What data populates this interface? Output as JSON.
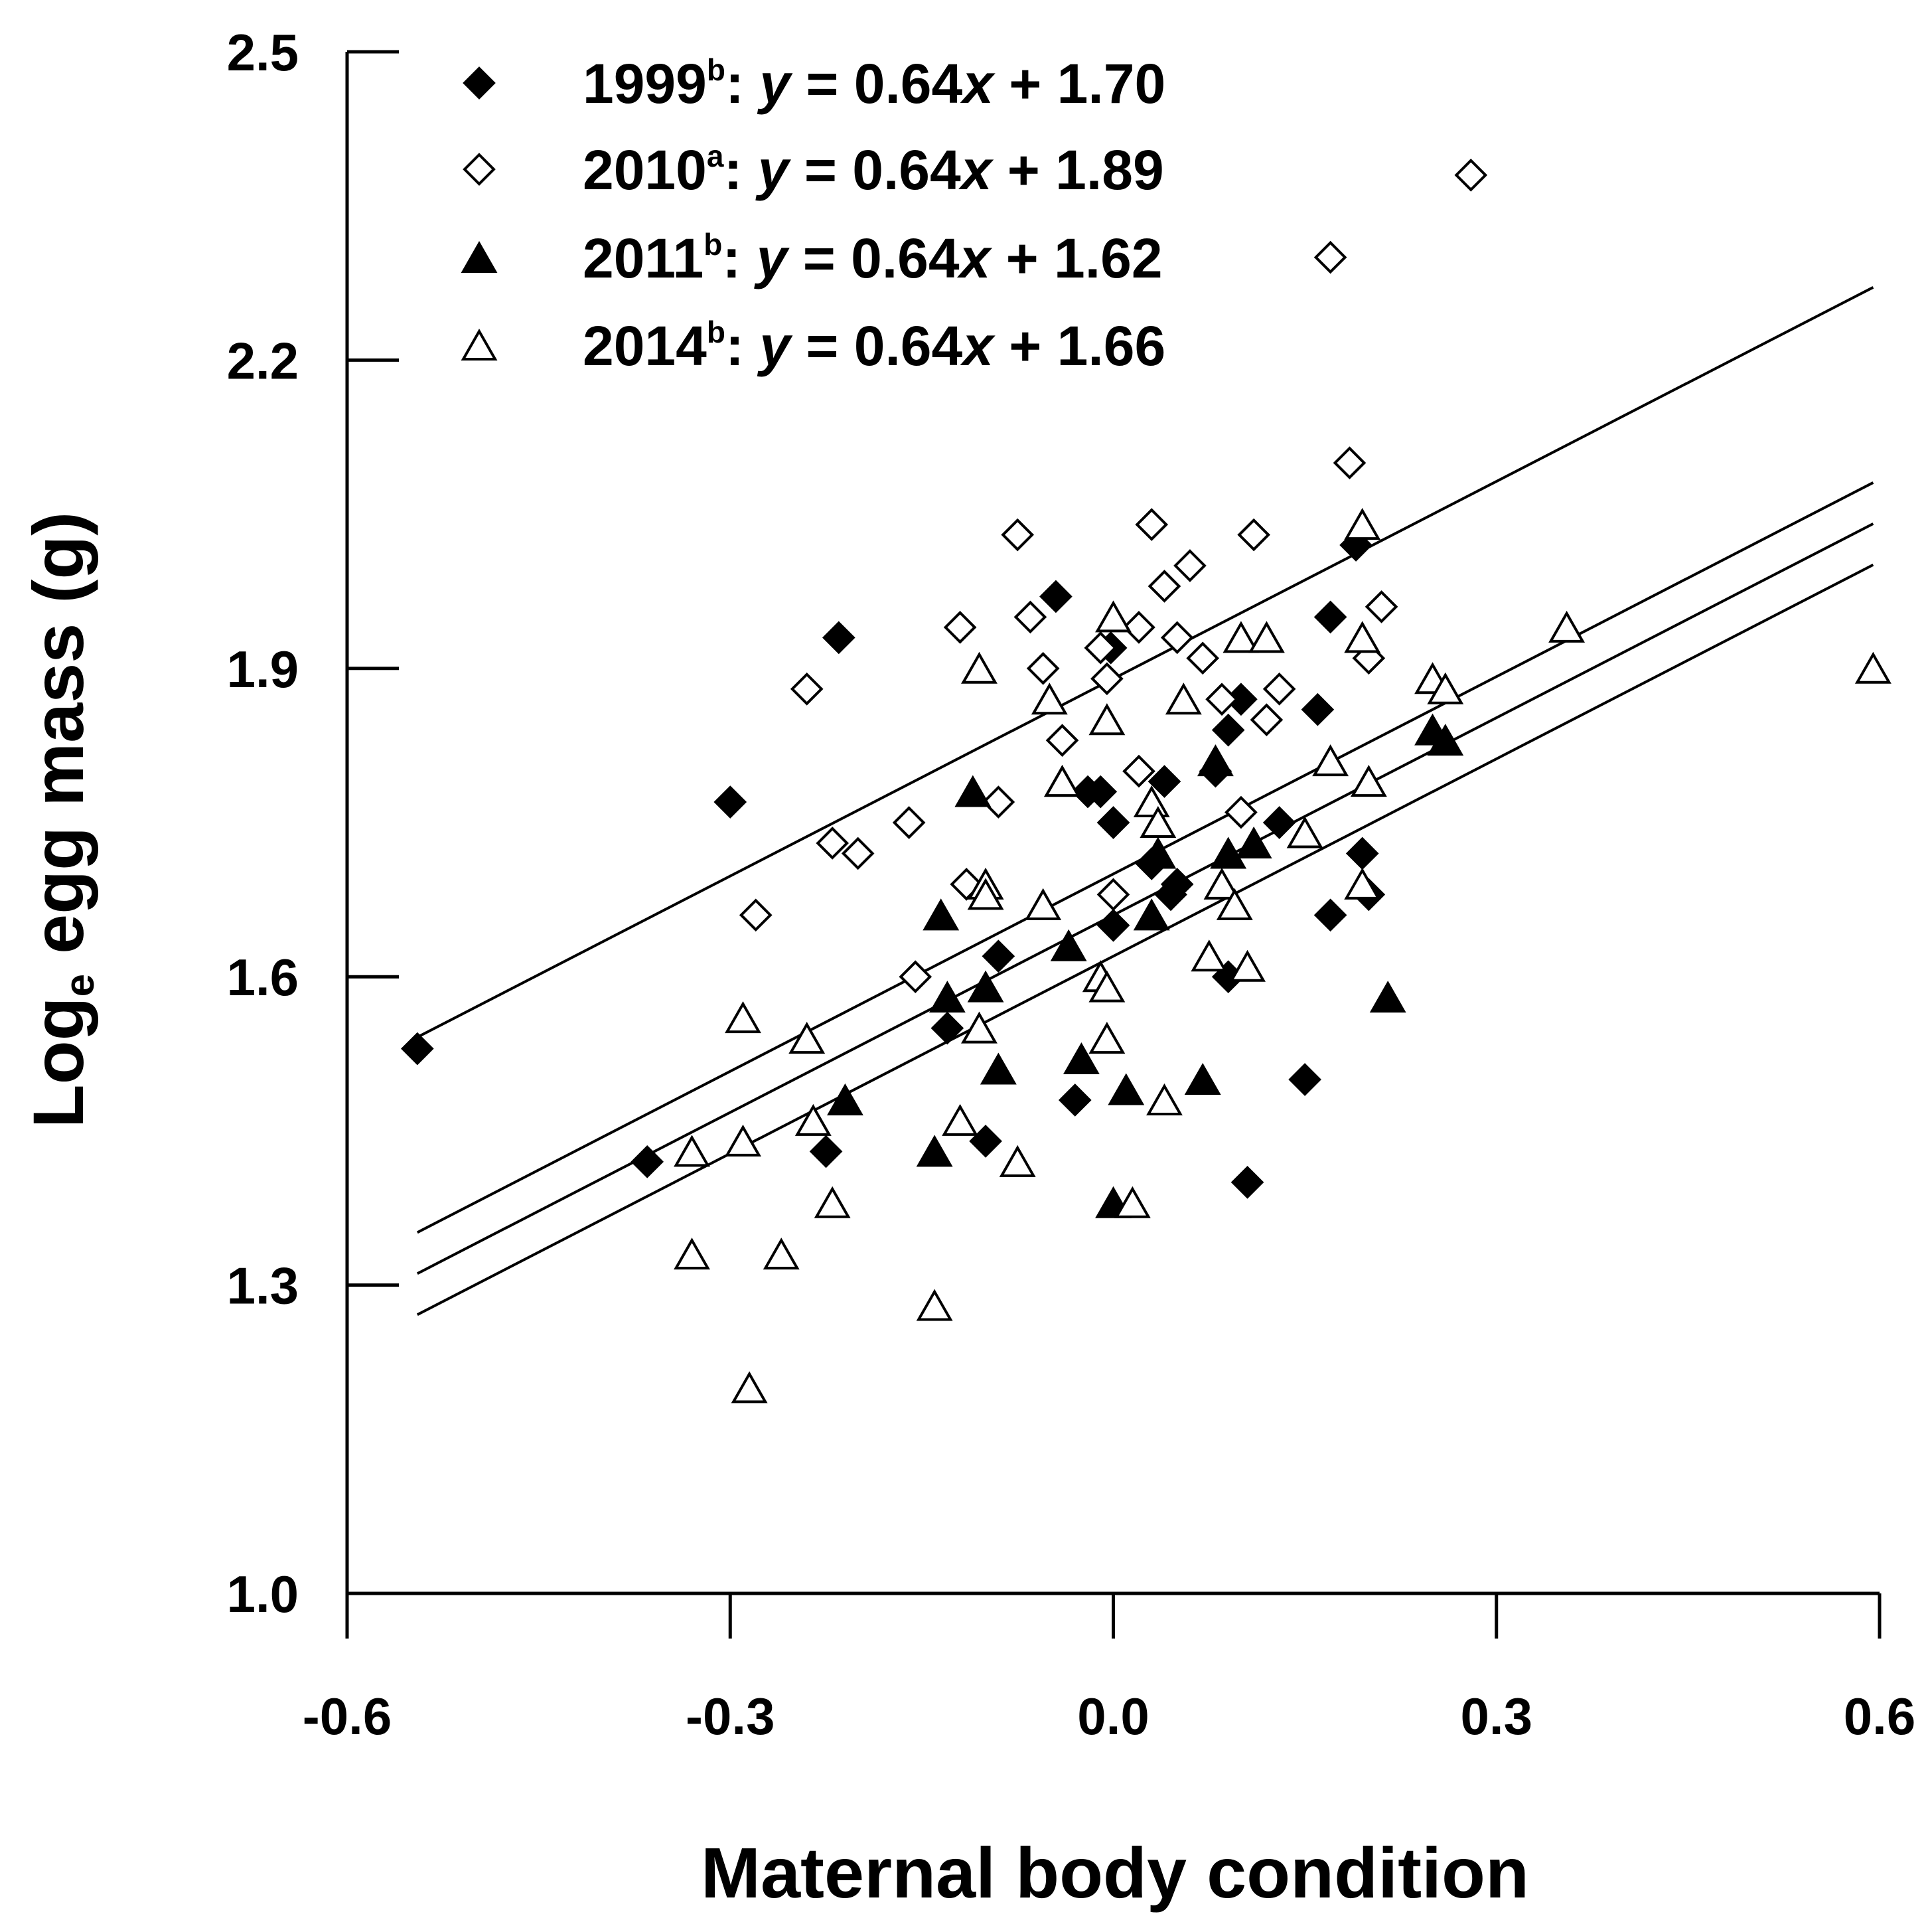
{
  "chart_data": {
    "type": "scatter",
    "title": "",
    "xlabel": "Maternal body condition",
    "ylabel": {
      "main": "Log",
      "sub": "e",
      "rest": " egg mass (g)"
    },
    "xlim": [
      -0.6,
      0.6
    ],
    "ylim": [
      1.0,
      2.5
    ],
    "xticks": [
      -0.6,
      -0.3,
      0.0,
      0.3,
      0.6
    ],
    "xtick_labels": [
      "-0.6",
      "-0.3",
      "0.0",
      "0.3",
      "0.6"
    ],
    "yticks": [
      1.0,
      1.3,
      1.6,
      1.9,
      2.2,
      2.5
    ],
    "ytick_labels": [
      "1.0",
      "1.3",
      "1.6",
      "1.9",
      "2.2",
      "2.5"
    ],
    "grid": false,
    "legend_position": "top-left",
    "series": [
      {
        "name": "1999",
        "sup": "b",
        "marker": "diamond-filled",
        "equation_prefix": ": ",
        "equation_y": "y",
        "equation_mid": " = 0.64",
        "equation_x": "x",
        "equation_rest": " + 1.70",
        "slope": 0.64,
        "intercept": 1.7,
        "line_x": [
          -0.545,
          0.595
        ],
        "points": [
          [
            -0.545,
            1.53
          ],
          [
            -0.365,
            1.42
          ],
          [
            -0.3,
            1.77
          ],
          [
            -0.215,
            1.93
          ],
          [
            -0.225,
            1.43
          ],
          [
            -0.13,
            1.55
          ],
          [
            -0.1,
            1.44
          ],
          [
            -0.09,
            1.62
          ],
          [
            -0.045,
            1.97
          ],
          [
            -0.03,
            1.48
          ],
          [
            -0.02,
            1.78
          ],
          [
            -0.01,
            1.78
          ],
          [
            -0.002,
            1.92
          ],
          [
            0.0,
            1.75
          ],
          [
            0.0,
            1.65
          ],
          [
            0.03,
            1.71
          ],
          [
            0.04,
            1.79
          ],
          [
            0.045,
            1.68
          ],
          [
            0.05,
            1.69
          ],
          [
            0.08,
            1.8
          ],
          [
            0.09,
            1.84
          ],
          [
            0.1,
            1.87
          ],
          [
            0.09,
            1.6
          ],
          [
            0.105,
            1.4
          ],
          [
            0.13,
            1.75
          ],
          [
            0.15,
            1.5
          ],
          [
            0.16,
            1.86
          ],
          [
            0.17,
            1.95
          ],
          [
            0.17,
            1.66
          ],
          [
            0.19,
            2.02
          ],
          [
            0.195,
            1.72
          ],
          [
            0.2,
            1.68
          ]
        ]
      },
      {
        "name": "2010",
        "sup": "a",
        "marker": "diamond-open",
        "equation_prefix": ": ",
        "equation_y": "y",
        "equation_mid": " = 0.64",
        "equation_x": "x",
        "equation_rest": " + 1.89",
        "slope": 0.64,
        "intercept": 1.89,
        "line_x": [
          -0.545,
          0.595
        ],
        "points": [
          [
            -0.24,
            1.88
          ],
          [
            -0.28,
            1.66
          ],
          [
            -0.22,
            1.73
          ],
          [
            -0.2,
            1.72
          ],
          [
            -0.16,
            1.75
          ],
          [
            -0.155,
            1.6
          ],
          [
            -0.12,
            1.94
          ],
          [
            -0.115,
            1.69
          ],
          [
            -0.09,
            1.77
          ],
          [
            -0.075,
            2.03
          ],
          [
            -0.065,
            1.95
          ],
          [
            -0.055,
            1.9
          ],
          [
            -0.04,
            1.83
          ],
          [
            -0.01,
            1.92
          ],
          [
            -0.005,
            1.89
          ],
          [
            0.0,
            1.68
          ],
          [
            0.02,
            1.8
          ],
          [
            0.02,
            1.94
          ],
          [
            0.03,
            2.04
          ],
          [
            0.04,
            1.98
          ],
          [
            0.05,
            1.93
          ],
          [
            0.06,
            2.0
          ],
          [
            0.07,
            1.91
          ],
          [
            0.085,
            1.87
          ],
          [
            0.1,
            1.76
          ],
          [
            0.11,
            2.03
          ],
          [
            0.12,
            1.85
          ],
          [
            0.13,
            1.88
          ],
          [
            0.17,
            2.3
          ],
          [
            0.185,
            2.1
          ],
          [
            0.2,
            1.91
          ],
          [
            0.21,
            1.96
          ],
          [
            0.28,
            2.38
          ]
        ]
      },
      {
        "name": "2011",
        "sup": "b",
        "marker": "triangle-filled",
        "equation_prefix": ": ",
        "equation_y": "y",
        "equation_mid": " = 0.64",
        "equation_x": "x",
        "equation_rest": " + 1.62",
        "slope": 0.64,
        "intercept": 1.62,
        "line_x": [
          -0.545,
          0.595
        ],
        "points": [
          [
            -0.21,
            1.48
          ],
          [
            -0.14,
            1.43
          ],
          [
            -0.135,
            1.66
          ],
          [
            -0.13,
            1.58
          ],
          [
            -0.11,
            1.78
          ],
          [
            -0.1,
            1.59
          ],
          [
            -0.09,
            1.51
          ],
          [
            -0.04,
            1.79
          ],
          [
            -0.035,
            1.63
          ],
          [
            -0.025,
            1.52
          ],
          [
            0.0,
            1.38
          ],
          [
            0.01,
            1.49
          ],
          [
            0.03,
            1.66
          ],
          [
            0.035,
            1.72
          ],
          [
            0.07,
            1.5
          ],
          [
            0.08,
            1.81
          ],
          [
            0.09,
            1.72
          ],
          [
            0.11,
            1.73
          ],
          [
            0.215,
            1.58
          ],
          [
            0.25,
            1.84
          ],
          [
            0.26,
            1.83
          ]
        ]
      },
      {
        "name": "2014",
        "sup": "b",
        "marker": "triangle-open",
        "equation_prefix": ": ",
        "equation_y": "y",
        "equation_mid": " = 0.64",
        "equation_x": "x",
        "equation_rest": " + 1.66",
        "slope": 0.64,
        "intercept": 1.66,
        "line_x": [
          -0.545,
          0.595
        ],
        "points": [
          [
            -0.33,
            1.43
          ],
          [
            -0.33,
            1.33
          ],
          [
            -0.29,
            1.56
          ],
          [
            -0.29,
            1.44
          ],
          [
            -0.285,
            1.2
          ],
          [
            -0.26,
            1.33
          ],
          [
            -0.24,
            1.54
          ],
          [
            -0.235,
            1.46
          ],
          [
            -0.22,
            1.38
          ],
          [
            -0.14,
            1.28
          ],
          [
            -0.12,
            1.46
          ],
          [
            -0.105,
            1.55
          ],
          [
            -0.1,
            1.69
          ],
          [
            -0.1,
            1.68
          ],
          [
            -0.105,
            1.9
          ],
          [
            -0.075,
            1.42
          ],
          [
            -0.055,
            1.67
          ],
          [
            -0.05,
            1.87
          ],
          [
            -0.04,
            1.79
          ],
          [
            -0.01,
            1.6
          ],
          [
            -0.005,
            1.59
          ],
          [
            -0.005,
            1.54
          ],
          [
            -0.005,
            1.85
          ],
          [
            0.0,
            1.95
          ],
          [
            0.015,
            1.38
          ],
          [
            0.03,
            1.77
          ],
          [
            0.035,
            1.75
          ],
          [
            0.04,
            1.48
          ],
          [
            0.055,
            1.87
          ],
          [
            0.075,
            1.62
          ],
          [
            0.085,
            1.69
          ],
          [
            0.095,
            1.67
          ],
          [
            0.1,
            1.93
          ],
          [
            0.105,
            1.61
          ],
          [
            0.12,
            1.93
          ],
          [
            0.15,
            1.74
          ],
          [
            0.17,
            1.81
          ],
          [
            0.195,
            2.04
          ],
          [
            0.195,
            1.93
          ],
          [
            0.195,
            1.69
          ],
          [
            0.2,
            1.79
          ],
          [
            0.25,
            1.89
          ],
          [
            0.26,
            1.88
          ],
          [
            0.355,
            1.94
          ],
          [
            0.595,
            1.9
          ]
        ]
      }
    ]
  }
}
